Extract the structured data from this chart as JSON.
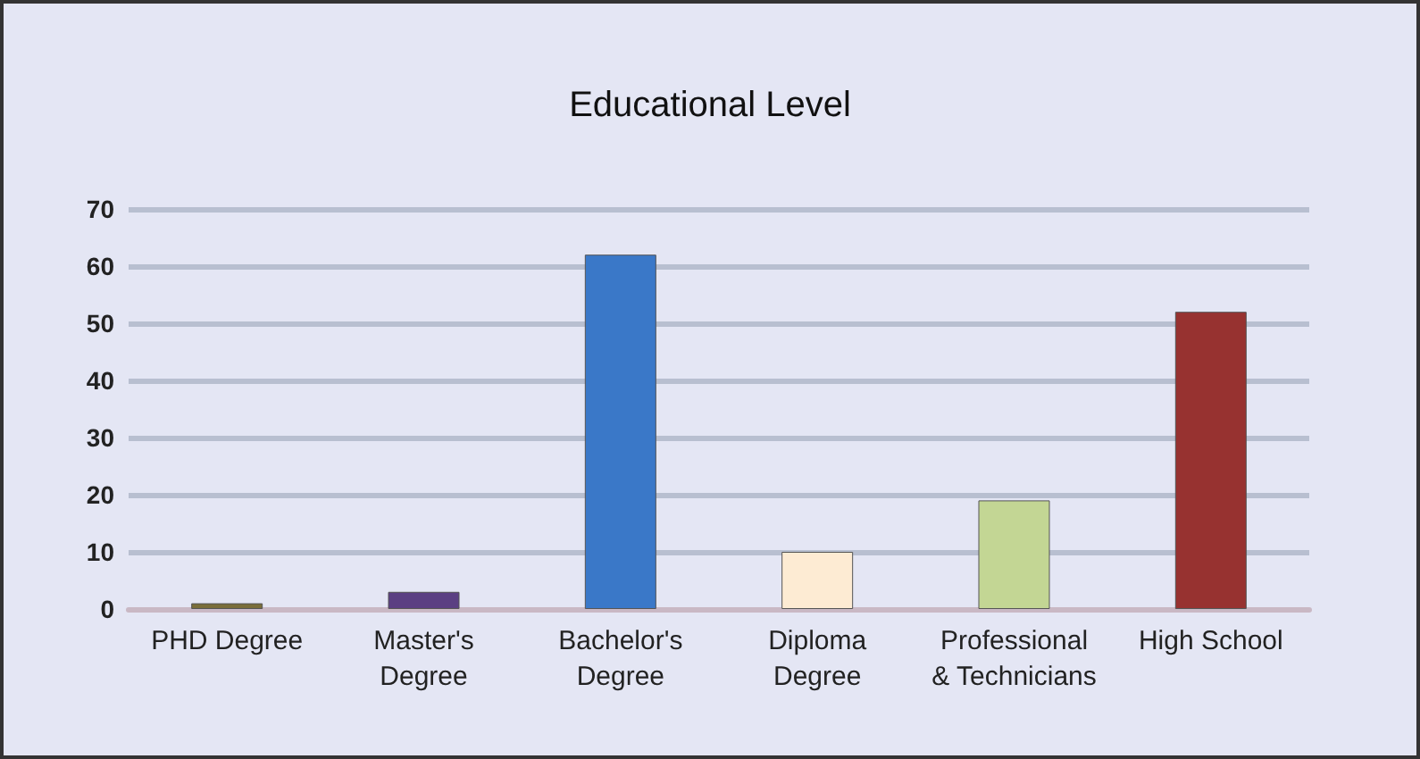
{
  "chart_data": {
    "type": "bar",
    "title": "Educational Level",
    "categories": [
      "PHD Degree",
      "Master's\nDegree",
      "Bachelor's\nDegree",
      "Diploma\nDegree",
      "Professional\n& Technicians",
      "High School"
    ],
    "values": [
      1,
      3,
      62,
      10,
      19,
      52
    ],
    "colors": [
      "#7a6e3a",
      "#5b3f82",
      "#3a78c8",
      "#fdebd3",
      "#c3d694",
      "#973230"
    ],
    "ylim": [
      0,
      70
    ],
    "yticks": [
      0,
      10,
      20,
      30,
      40,
      50,
      60,
      70
    ],
    "grid": "y"
  }
}
